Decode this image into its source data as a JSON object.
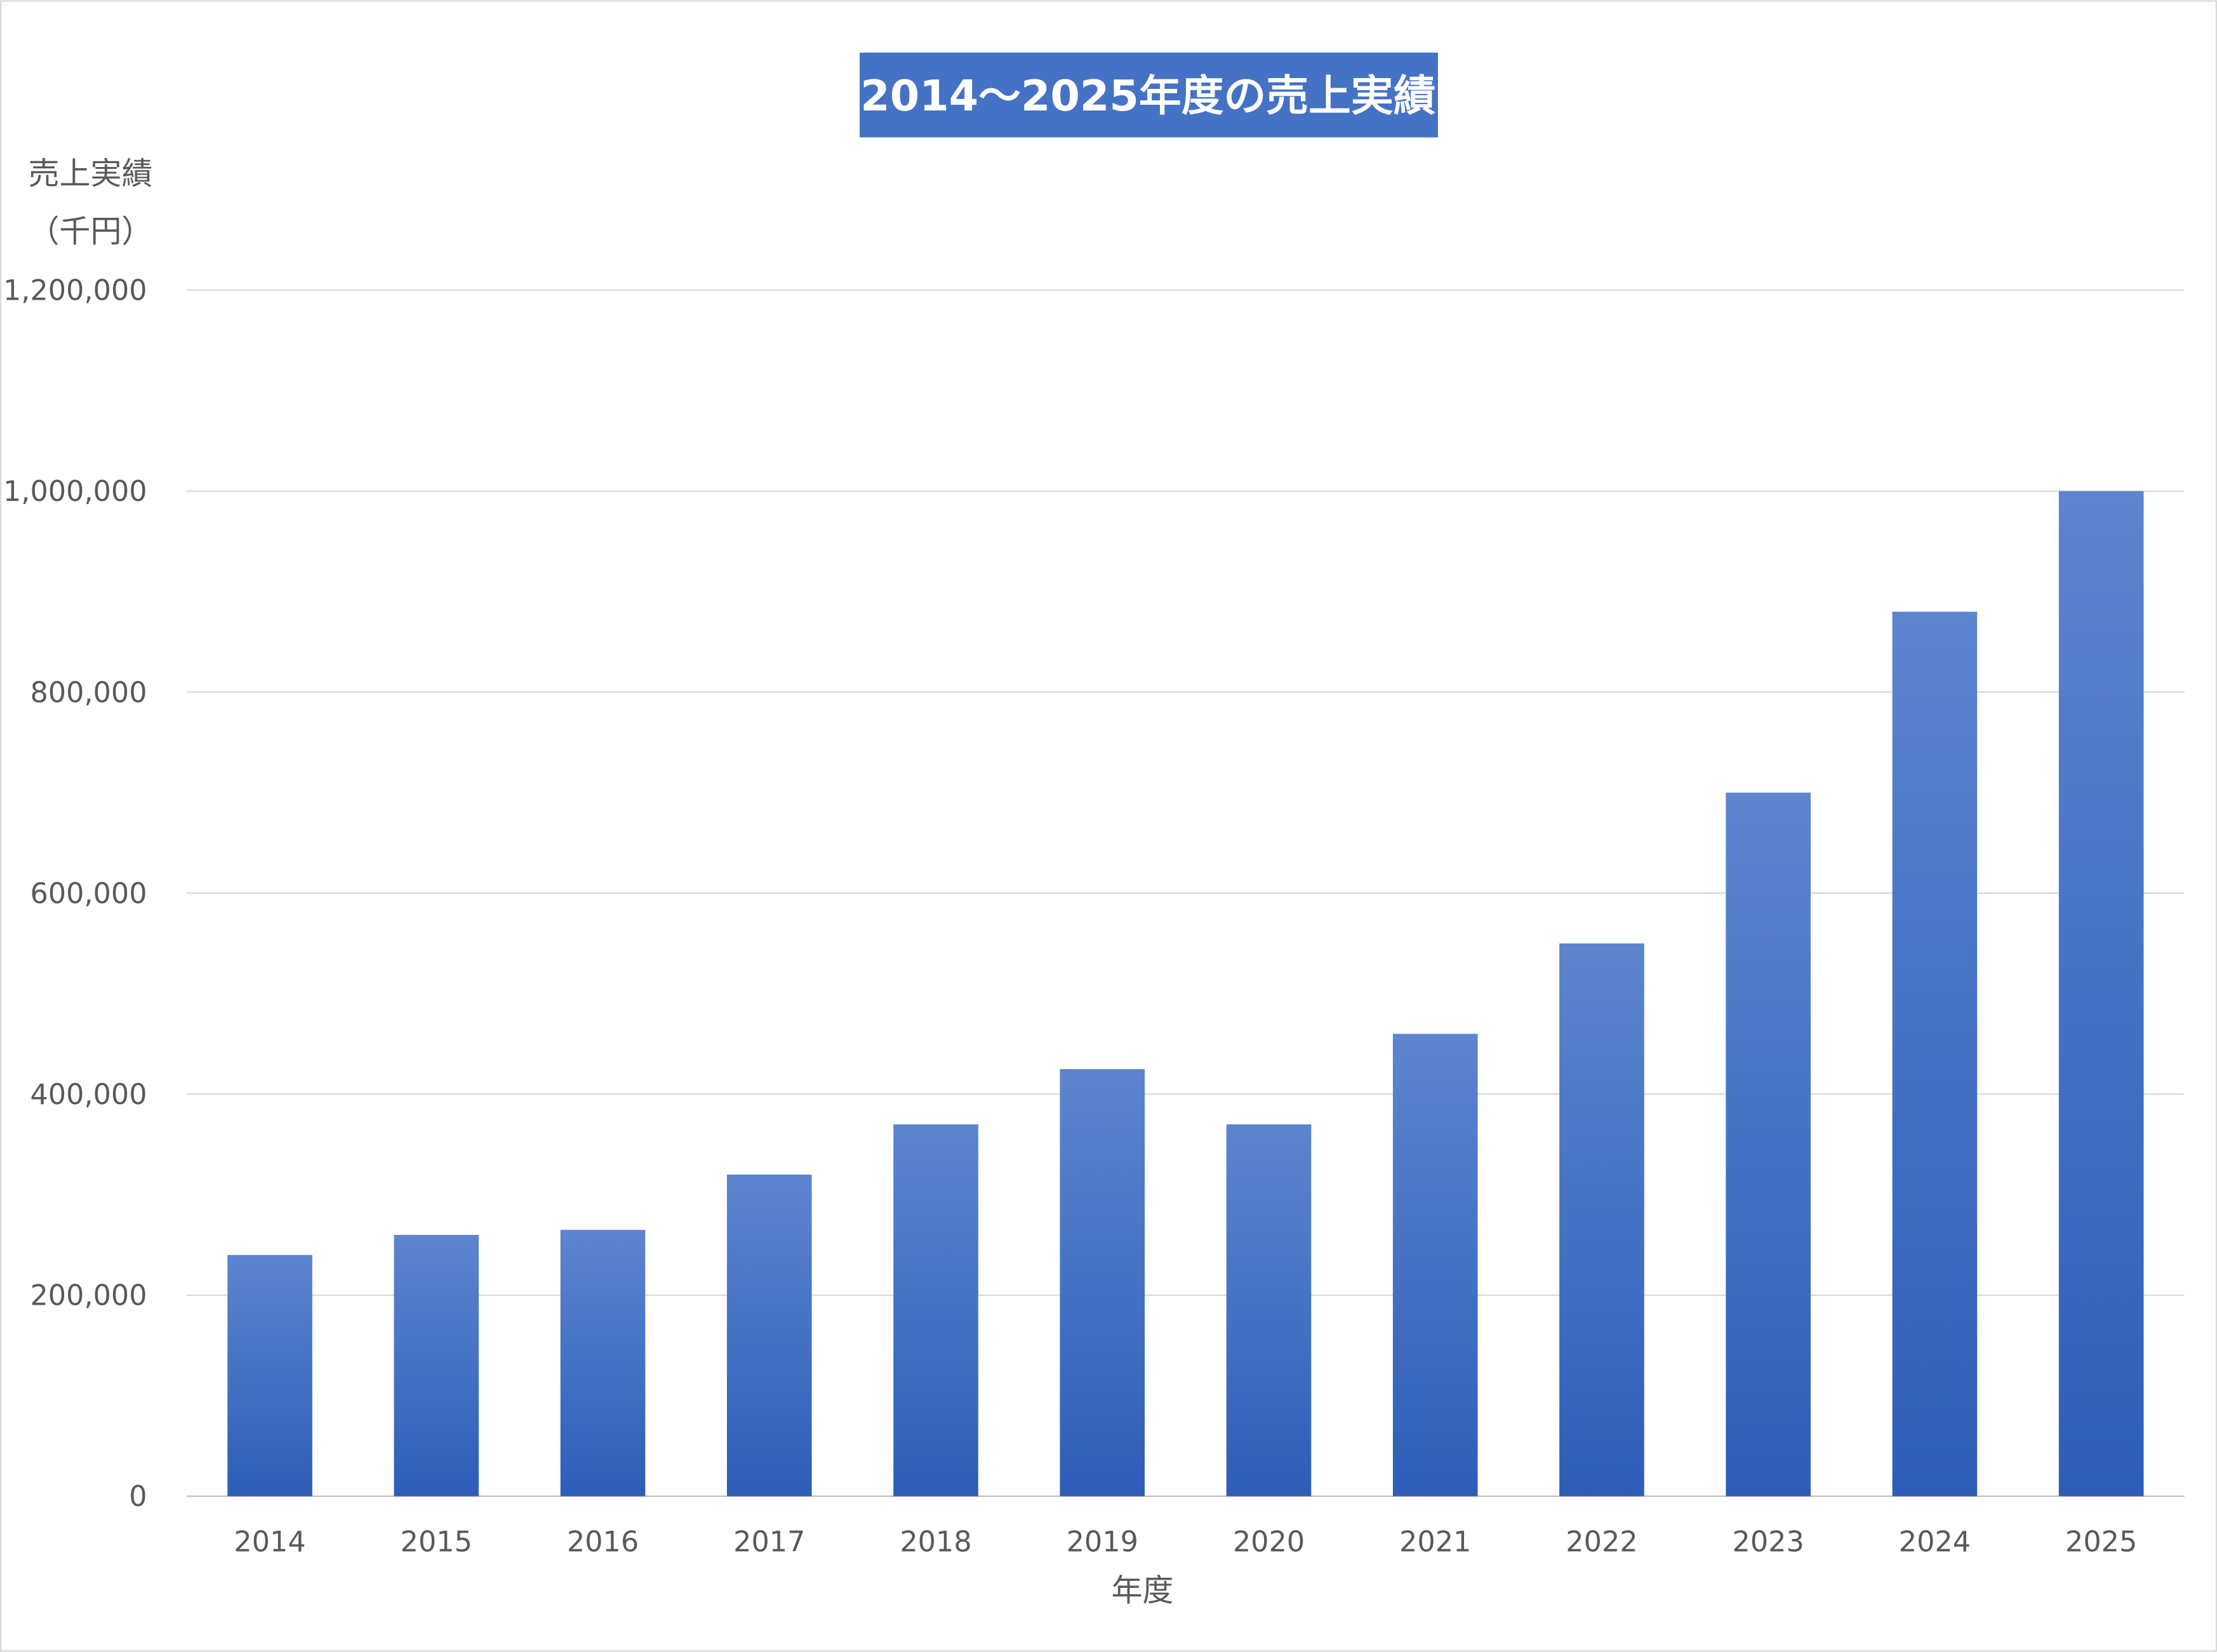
{
  "chart_data": {
    "type": "bar",
    "title": "2014～2025年度の売上実績",
    "xlabel": "年度",
    "ylabel_line1": "売上実績",
    "ylabel_line2": "（千円）",
    "categories": [
      "2014",
      "2015",
      "2016",
      "2017",
      "2018",
      "2019",
      "2020",
      "2021",
      "2022",
      "2023",
      "2024",
      "2025"
    ],
    "values": [
      240000,
      260000,
      265000,
      320000,
      370000,
      425000,
      370000,
      460000,
      550000,
      700000,
      880000,
      1000000
    ],
    "ylim": [
      0,
      1200000
    ],
    "yticks": [
      0,
      200000,
      400000,
      600000,
      800000,
      1000000,
      1200000
    ],
    "ytick_labels": [
      "0",
      "200,000",
      "400,000",
      "600,000",
      "800,000",
      "1,000,000",
      "1,200,000"
    ],
    "grid": true,
    "legend": "none",
    "colors": {
      "bar_top": "#5E84CE",
      "bar_mid": "#4472C4",
      "bar_bottom": "#2E5DB8",
      "title_bg": "#4472C4",
      "grid": "#D9D9D9",
      "text": "#595959"
    }
  }
}
